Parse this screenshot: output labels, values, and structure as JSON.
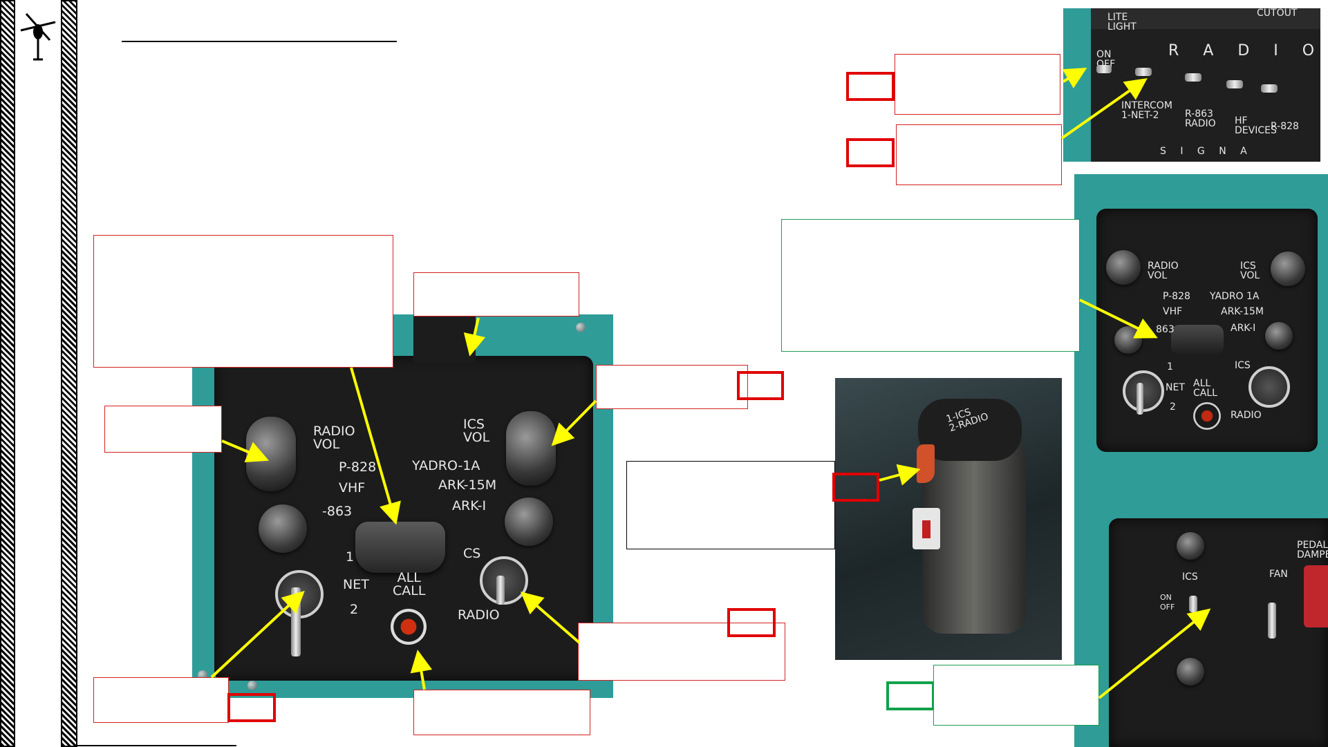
{
  "panel_labels": {
    "radio_vol": "RADIO\nVOL",
    "ics_vol": "ICS\nVOL",
    "p828": "P-828",
    "vhf": "VHF",
    "r863": "-863",
    "yadro": "YADRO-1A",
    "ark15m": "ARK-15M",
    "arki": "ARK-I",
    "net_1": "1",
    "net": "NET",
    "net_2": "2",
    "all_call": "ALL\nCALL",
    "cs": "CS",
    "radio": "RADIO"
  },
  "top_panel_labels": {
    "cutout": "CUTOUT",
    "lite_light": "LITE\nLIGHT",
    "radio_letters": "R A D I O",
    "on_off": "ON\nOFF",
    "intercom": "INTERCOM\n1-NET-2",
    "r863_radio": "R-863\nRADIO",
    "hf_devices": "HF\nDEVICES",
    "r828": "R-828",
    "signal": "S I G N A"
  },
  "right_panel_labels": {
    "radio_vol": "RADIO\nVOL",
    "ics_vol": "ICS\nVOL",
    "p828": "P-828",
    "vhf": "VHF",
    "r863": "863",
    "yadro": "YADRO 1A",
    "ark15m": "ARK-15M",
    "arki": "ARK-I",
    "net_1": "1",
    "net": "NET",
    "net_2": "2",
    "all_call": "ALL\nCALL",
    "ics": "ICS",
    "radio": "RADIO"
  },
  "bottom_right_labels": {
    "ics": "ICS",
    "fan": "FAN",
    "pedal_damper": "PEDAL\nDAMPER",
    "on_off": "ON\nOFF"
  },
  "grip_labels": {
    "switch": "1-ICS\n2-RADIO"
  },
  "colors": {
    "accent_red": "#e00000",
    "accent_green": "#12a14a",
    "arrow_yellow": "#ffff00",
    "panel_teal": "#2f9c98"
  }
}
